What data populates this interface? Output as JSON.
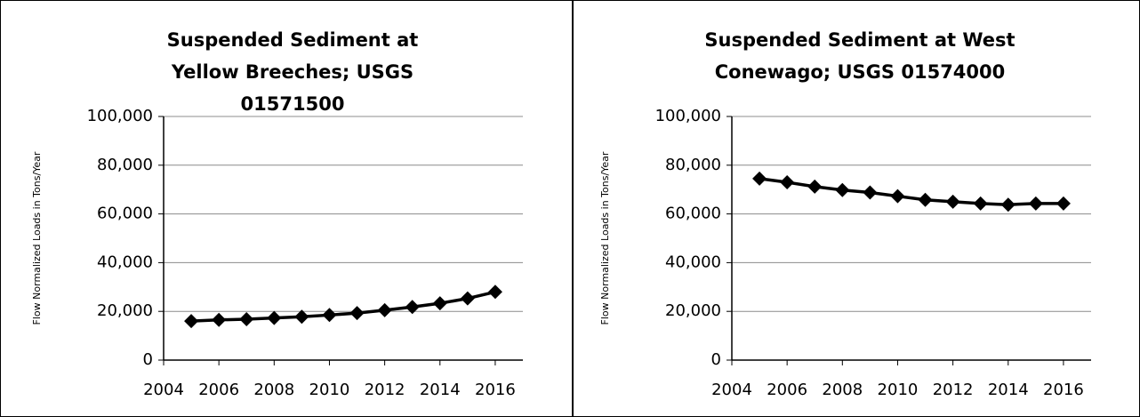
{
  "chart_data": [
    {
      "type": "line",
      "title": "Suspended Sediment at Yellow Breeches; USGS 01571500",
      "y_label": "Flow Normalized Loads in Tons/Year",
      "x": [
        2005,
        2006,
        2007,
        2008,
        2009,
        2010,
        2011,
        2012,
        2013,
        2014,
        2015,
        2016
      ],
      "series": [
        {
          "color": "#000000",
          "values": [
            16000,
            16500,
            16800,
            17300,
            17800,
            18500,
            19300,
            20500,
            21800,
            23300,
            25300,
            28000
          ]
        }
      ],
      "xlim": [
        2004,
        2017
      ],
      "xticks": [
        2004,
        2006,
        2008,
        2010,
        2012,
        2014,
        2016
      ],
      "ylim": [
        0,
        100000
      ],
      "yticks": [
        0,
        {
          "value": 20000,
          "label": "20,000"
        },
        {
          "value": 40000,
          "label": "40,000"
        },
        {
          "value": 60000,
          "label": "60,000"
        },
        {
          "value": 80000,
          "label": "80,000"
        },
        {
          "value": 100000,
          "label": "100,000"
        }
      ],
      "grid": true
    },
    {
      "type": "line",
      "title": "Suspended Sediment at West Conewago; USGS 01574000",
      "y_label": "Flow Normalized Loads in Tons/Year",
      "x": [
        2005,
        2006,
        2007,
        2008,
        2009,
        2010,
        2011,
        2012,
        2013,
        2014,
        2015,
        2016
      ],
      "series": [
        {
          "color": "#000000",
          "values": [
            74500,
            73000,
            71200,
            69800,
            68800,
            67300,
            65800,
            65000,
            64300,
            63800,
            64300,
            64300
          ]
        }
      ],
      "xlim": [
        2004,
        2017
      ],
      "xticks": [
        2004,
        2006,
        2008,
        2010,
        2012,
        2014,
        2016
      ],
      "ylim": [
        0,
        100000
      ],
      "yticks": [
        0,
        {
          "value": 20000,
          "label": "20,000"
        },
        {
          "value": 40000,
          "label": "40,000"
        },
        {
          "value": 60000,
          "label": "60,000"
        },
        {
          "value": 80000,
          "label": "80,000"
        },
        {
          "value": 100000,
          "label": "100,000"
        }
      ],
      "grid": true
    }
  ]
}
